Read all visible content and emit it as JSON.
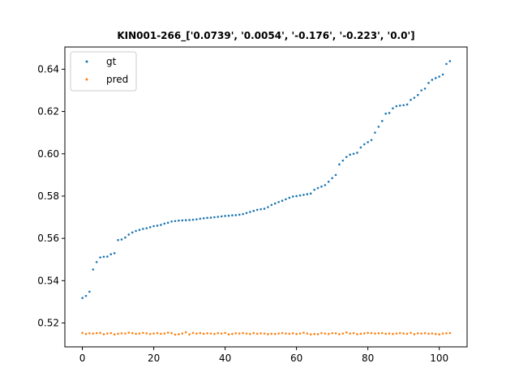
{
  "chart_data": {
    "type": "scatter",
    "title": "KIN001-266_['0.0739', '0.0054', '-0.176', '-0.223', '0.0']",
    "xlabel": "",
    "ylabel": "",
    "xlim": [
      -4.9,
      107.8
    ],
    "ylim": [
      0.5087,
      0.6505
    ],
    "xticks": [
      0,
      20,
      40,
      60,
      80,
      100
    ],
    "yticks": [
      0.52,
      0.54,
      0.56,
      0.58,
      0.6,
      0.62,
      0.64
    ],
    "xtick_labels": [
      "0",
      "20",
      "40",
      "60",
      "80",
      "100"
    ],
    "ytick_labels": [
      "0.52",
      "0.54",
      "0.56",
      "0.58",
      "0.60",
      "0.62",
      "0.64"
    ],
    "grid": false,
    "legend_position": "top-left",
    "series": [
      {
        "name": "gt",
        "color": "#1f77b4",
        "x": [
          0,
          1,
          2,
          3,
          4,
          5,
          6,
          7,
          8,
          9,
          10,
          11,
          12,
          13,
          14,
          15,
          16,
          17,
          18,
          19,
          20,
          21,
          22,
          23,
          24,
          25,
          26,
          27,
          28,
          29,
          30,
          31,
          32,
          33,
          34,
          35,
          36,
          37,
          38,
          39,
          40,
          41,
          42,
          43,
          44,
          45,
          46,
          47,
          48,
          49,
          50,
          51,
          52,
          53,
          54,
          55,
          56,
          57,
          58,
          59,
          60,
          61,
          62,
          63,
          64,
          65,
          66,
          67,
          68,
          69,
          70,
          71,
          72,
          73,
          74,
          75,
          76,
          77,
          78,
          79,
          80,
          81,
          82,
          83,
          84,
          85,
          86,
          87,
          88,
          89,
          90,
          91,
          92,
          93,
          94,
          95,
          96,
          97,
          98,
          99,
          100,
          101,
          102,
          103
        ],
        "y": [
          0.5318,
          0.5328,
          0.5348,
          0.5453,
          0.5488,
          0.551,
          0.5513,
          0.5514,
          0.5525,
          0.553,
          0.5592,
          0.5595,
          0.5604,
          0.5618,
          0.5628,
          0.5635,
          0.564,
          0.5645,
          0.5648,
          0.5653,
          0.5658,
          0.566,
          0.5664,
          0.567,
          0.5674,
          0.568,
          0.5682,
          0.5684,
          0.5685,
          0.5686,
          0.5687,
          0.5688,
          0.569,
          0.5693,
          0.5695,
          0.5697,
          0.5698,
          0.57,
          0.5702,
          0.5704,
          0.5706,
          0.5707,
          0.5709,
          0.571,
          0.5712,
          0.5715,
          0.572,
          0.5725,
          0.573,
          0.5735,
          0.5738,
          0.574,
          0.5748,
          0.5758,
          0.5765,
          0.5772,
          0.5778,
          0.5785,
          0.5792,
          0.5798,
          0.58,
          0.5803,
          0.5806,
          0.5809,
          0.5812,
          0.583,
          0.5838,
          0.5845,
          0.5852,
          0.5868,
          0.5885,
          0.59,
          0.595,
          0.5968,
          0.5985,
          0.5996,
          0.6,
          0.6005,
          0.603,
          0.6045,
          0.6055,
          0.6065,
          0.61,
          0.6128,
          0.6155,
          0.619,
          0.6193,
          0.6215,
          0.6225,
          0.6228,
          0.623,
          0.6233,
          0.6255,
          0.6265,
          0.6278,
          0.63,
          0.6308,
          0.6335,
          0.635,
          0.6358,
          0.6365,
          0.6375,
          0.6425,
          0.6438
        ]
      },
      {
        "name": "pred",
        "color": "#ff7f0e",
        "x": [
          0,
          1,
          2,
          3,
          4,
          5,
          6,
          7,
          8,
          9,
          10,
          11,
          12,
          13,
          14,
          15,
          16,
          17,
          18,
          19,
          20,
          21,
          22,
          23,
          24,
          25,
          26,
          27,
          28,
          29,
          30,
          31,
          32,
          33,
          34,
          35,
          36,
          37,
          38,
          39,
          40,
          41,
          42,
          43,
          44,
          45,
          46,
          47,
          48,
          49,
          50,
          51,
          52,
          53,
          54,
          55,
          56,
          57,
          58,
          59,
          60,
          61,
          62,
          63,
          64,
          65,
          66,
          67,
          68,
          69,
          70,
          71,
          72,
          73,
          74,
          75,
          76,
          77,
          78,
          79,
          80,
          81,
          82,
          83,
          84,
          85,
          86,
          87,
          88,
          89,
          90,
          91,
          92,
          93,
          94,
          95,
          96,
          97,
          98,
          99,
          100,
          101,
          102,
          103
        ],
        "y": [
          0.5153,
          0.5148,
          0.5151,
          0.515,
          0.5152,
          0.5153,
          0.5147,
          0.515,
          0.5152,
          0.5146,
          0.5149,
          0.5151,
          0.515,
          0.5154,
          0.5152,
          0.5149,
          0.515,
          0.5153,
          0.5151,
          0.5148,
          0.515,
          0.5152,
          0.5149,
          0.515,
          0.5154,
          0.5152,
          0.5145,
          0.5147,
          0.515,
          0.5156,
          0.5146,
          0.5153,
          0.515,
          0.5152,
          0.5149,
          0.5151,
          0.515,
          0.5148,
          0.5152,
          0.515,
          0.5153,
          0.5146,
          0.5148,
          0.5151,
          0.515,
          0.5152,
          0.515,
          0.5148,
          0.5152,
          0.5149,
          0.5151,
          0.515,
          0.5147,
          0.5149,
          0.5148,
          0.515,
          0.5152,
          0.515,
          0.5149,
          0.5151,
          0.5148,
          0.515,
          0.5154,
          0.515,
          0.5146,
          0.5148,
          0.5147,
          0.5152,
          0.515,
          0.5148,
          0.5152,
          0.5151,
          0.5147,
          0.515,
          0.5155,
          0.515,
          0.5152,
          0.5147,
          0.5149,
          0.5151,
          0.5153,
          0.5152,
          0.515,
          0.5151,
          0.5152,
          0.5149,
          0.515,
          0.5148,
          0.515,
          0.5152,
          0.515,
          0.5149,
          0.5153,
          0.5147,
          0.5151,
          0.515,
          0.5152,
          0.5149,
          0.515,
          0.5148,
          0.5146,
          0.515,
          0.5151,
          0.5152
        ]
      }
    ]
  }
}
